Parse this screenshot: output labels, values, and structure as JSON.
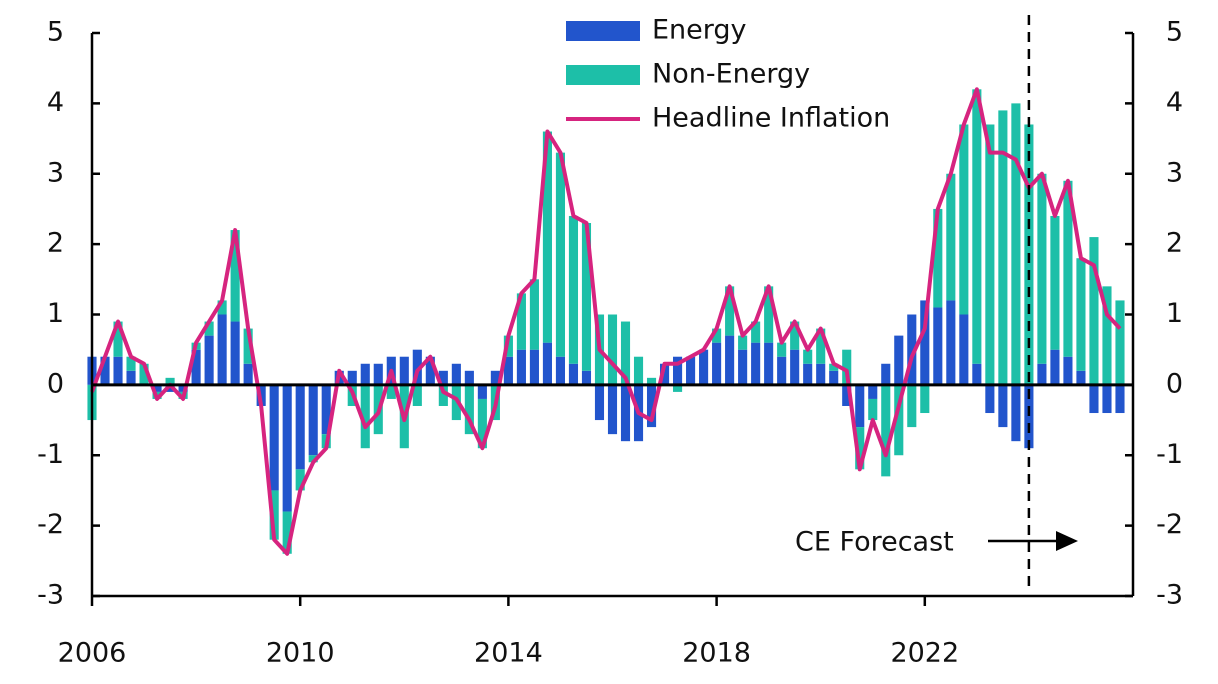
{
  "chart_data": {
    "type": "bar",
    "x": [
      2006,
      2006.25,
      2006.5,
      2006.75,
      2007,
      2007.25,
      2007.5,
      2007.75,
      2008,
      2008.25,
      2008.5,
      2008.75,
      2009,
      2009.25,
      2009.5,
      2009.75,
      2010,
      2010.25,
      2010.5,
      2010.75,
      2011,
      2011.25,
      2011.5,
      2011.75,
      2012,
      2012.25,
      2012.5,
      2012.75,
      2013,
      2013.25,
      2013.5,
      2013.75,
      2014,
      2014.25,
      2014.5,
      2014.75,
      2015,
      2015.25,
      2015.5,
      2015.75,
      2016,
      2016.25,
      2016.5,
      2016.75,
      2017,
      2017.25,
      2017.5,
      2017.75,
      2018,
      2018.25,
      2018.5,
      2018.75,
      2019,
      2019.25,
      2019.5,
      2019.75,
      2020,
      2020.25,
      2020.5,
      2020.75,
      2021,
      2021.25,
      2021.5,
      2021.75,
      2022,
      2022.25,
      2022.5,
      2022.75,
      2023,
      2023.25,
      2023.5,
      2023.75,
      2024,
      2024.25,
      2024.5,
      2024.75,
      2025,
      2025.25,
      2025.5,
      2025.75
    ],
    "series": [
      {
        "name": "Energy",
        "color": "#2255cc",
        "stacked": true,
        "values": [
          0.4,
          0.4,
          0.4,
          0.2,
          0,
          -0.1,
          -0.1,
          -0.1,
          0.5,
          0.7,
          1.0,
          0.9,
          0.3,
          -0.3,
          -1.5,
          -1.8,
          -1.2,
          -1.0,
          -0.7,
          0.2,
          0.2,
          0.3,
          0.3,
          0.4,
          0.4,
          0.5,
          0.4,
          0.2,
          0.3,
          0.2,
          -0.2,
          0.2,
          0.4,
          0.5,
          0.5,
          0.6,
          0.4,
          0.3,
          0.2,
          -0.5,
          -0.7,
          -0.8,
          -0.8,
          -0.6,
          0.3,
          0.4,
          0.4,
          0.5,
          0.6,
          0.7,
          0.5,
          0.6,
          0.6,
          0.4,
          0.5,
          0.3,
          0.3,
          0.2,
          -0.3,
          -0.6,
          -0.2,
          0.3,
          0.7,
          1.0,
          1.2,
          1.1,
          1.2,
          1.0,
          0.3,
          -0.4,
          -0.6,
          -0.8,
          -0.9,
          0.3,
          0.5,
          0.4,
          0.2,
          -0.4,
          -0.4,
          -0.4
        ]
      },
      {
        "name": "Non-Energy",
        "color": "#1dbfa8",
        "stacked": true,
        "values": [
          -0.5,
          0.0,
          0.5,
          0.2,
          0.3,
          -0.1,
          0.1,
          -0.1,
          0.1,
          0.2,
          0.2,
          1.3,
          0.5,
          0.0,
          -0.7,
          -0.6,
          -0.3,
          -0.1,
          -0.2,
          0.0,
          -0.3,
          -0.9,
          -0.7,
          -0.2,
          -0.9,
          -0.3,
          0.0,
          -0.3,
          -0.5,
          -0.7,
          -0.7,
          -0.5,
          0.3,
          0.8,
          1.0,
          3.0,
          2.9,
          2.1,
          2.1,
          1.0,
          1.0,
          0.9,
          0.4,
          0.1,
          0.0,
          -0.1,
          0.0,
          0.0,
          0.2,
          0.7,
          0.2,
          0.3,
          0.8,
          0.2,
          0.4,
          0.2,
          0.5,
          0.1,
          0.5,
          -0.6,
          -0.3,
          -1.3,
          -1.0,
          -0.6,
          -0.4,
          1.4,
          1.8,
          2.7,
          3.9,
          3.7,
          3.9,
          4.0,
          3.7,
          2.7,
          1.9,
          2.5,
          1.6,
          2.1,
          1.4,
          1.2
        ]
      },
      {
        "name": "Headline Inflation",
        "color": "#d6247f",
        "kind": "line",
        "values": [
          -0.1,
          0.4,
          0.9,
          0.4,
          0.3,
          -0.2,
          0.0,
          -0.2,
          0.6,
          0.9,
          1.2,
          2.2,
          0.8,
          -0.3,
          -2.2,
          -2.4,
          -1.5,
          -1.1,
          -0.9,
          0.2,
          -0.1,
          -0.6,
          -0.4,
          0.2,
          -0.5,
          0.2,
          0.4,
          -0.1,
          -0.2,
          -0.5,
          -0.9,
          -0.3,
          0.7,
          1.3,
          1.5,
          3.6,
          3.3,
          2.4,
          2.3,
          0.5,
          0.3,
          0.1,
          -0.4,
          -0.5,
          0.3,
          0.3,
          0.4,
          0.5,
          0.8,
          1.4,
          0.7,
          0.9,
          1.4,
          0.6,
          0.9,
          0.5,
          0.8,
          0.3,
          0.2,
          -1.2,
          -0.5,
          -1.0,
          -0.3,
          0.4,
          0.8,
          2.5,
          3.0,
          3.7,
          4.2,
          3.3,
          3.3,
          3.2,
          2.8,
          3.0,
          2.4,
          2.9,
          1.8,
          1.7,
          1.0,
          0.8
        ]
      }
    ],
    "xlim": [
      2006,
      2026
    ],
    "xticks": [
      2006,
      2010,
      2014,
      2018,
      2022
    ],
    "ylim": [
      -3,
      5
    ],
    "yticks": [
      -3,
      -2,
      -1,
      0,
      1,
      2,
      3,
      4,
      5
    ],
    "y2lim": [
      -3,
      5
    ],
    "y2ticks": [
      -3,
      -2,
      -1,
      0,
      1,
      2,
      3,
      4,
      5
    ],
    "forecast_x": 2024,
    "annotation": "CE Forecast",
    "legend": "top"
  }
}
